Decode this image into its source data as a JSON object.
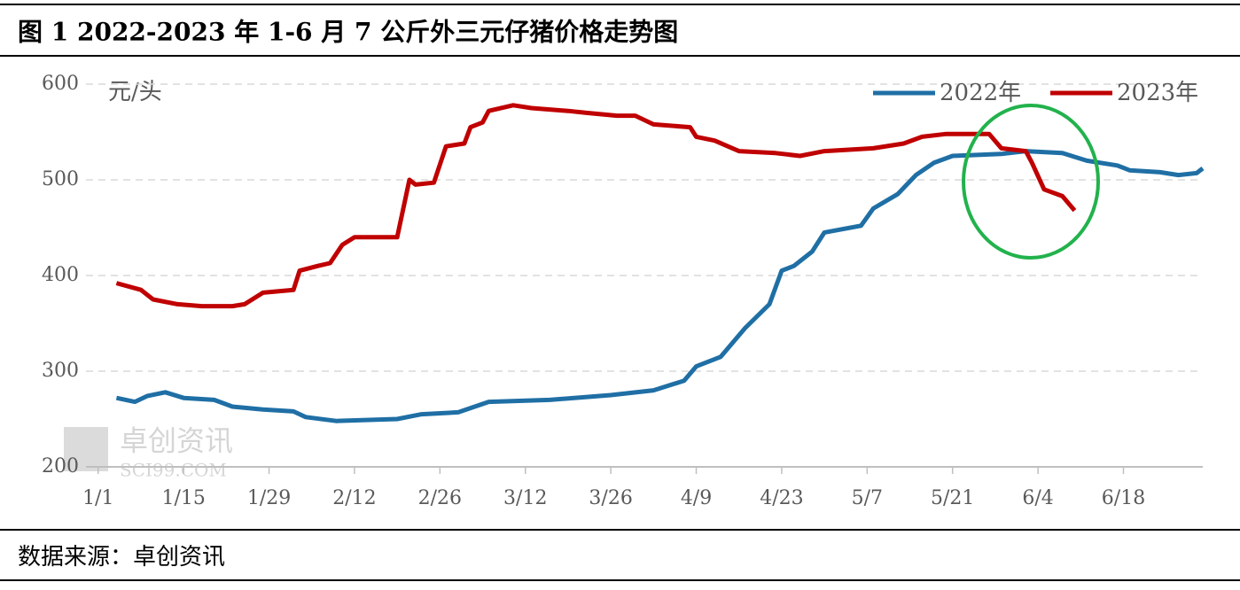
{
  "chart_data": {
    "type": "line",
    "title": "图 1 2022-2023 年 1-6 月 7 公斤外三元仔猪价格走势图",
    "y_label": "元/头",
    "source": "数据来源：卓创资讯",
    "watermark": [
      "卓创资讯",
      "SCI99.COM"
    ],
    "xlim": [
      -2,
      181
    ],
    "xticks": [
      {
        "value": 0,
        "label": "1/1"
      },
      {
        "value": 14,
        "label": "1/15"
      },
      {
        "value": 28,
        "label": "1/29"
      },
      {
        "value": 42,
        "label": "2/12"
      },
      {
        "value": 56,
        "label": "2/26"
      },
      {
        "value": 70,
        "label": "3/12"
      },
      {
        "value": 84,
        "label": "3/26"
      },
      {
        "value": 98,
        "label": "4/9"
      },
      {
        "value": 112,
        "label": "4/23"
      },
      {
        "value": 126,
        "label": "5/7"
      },
      {
        "value": 140,
        "label": "5/21"
      },
      {
        "value": 154,
        "label": "6/4"
      },
      {
        "value": 168,
        "label": "6/18"
      }
    ],
    "ylim": [
      200,
      600
    ],
    "yticks": [
      200,
      300,
      400,
      500,
      600
    ],
    "grid": true,
    "legend": "top-right",
    "series": [
      {
        "name": "2022年",
        "color": "#1f6fa5",
        "x": [
          3,
          6,
          8,
          11,
          14,
          19,
          22,
          27,
          32,
          34,
          39,
          49,
          53,
          59,
          64,
          74,
          84,
          91,
          96,
          98,
          102,
          104,
          106,
          110,
          112,
          114,
          117,
          119,
          125,
          127,
          131,
          134,
          137,
          140,
          148,
          152,
          158,
          162,
          167,
          169,
          174,
          177,
          180,
          181
        ],
        "values": [
          272,
          268,
          274,
          278,
          272,
          270,
          263,
          260,
          258,
          252,
          248,
          250,
          255,
          257,
          268,
          270,
          275,
          280,
          290,
          305,
          315,
          330,
          345,
          370,
          405,
          410,
          425,
          445,
          452,
          470,
          485,
          505,
          518,
          525,
          527,
          530,
          528,
          520,
          515,
          510,
          508,
          505,
          507,
          512
        ]
      },
      {
        "name": "2023年",
        "color": "#c00000",
        "x": [
          3,
          7,
          9,
          13,
          17,
          22,
          24,
          27,
          32,
          33,
          36,
          38,
          40,
          42,
          49,
          51,
          52,
          55,
          57,
          60,
          61,
          63,
          64,
          68,
          71,
          77,
          80,
          85,
          88,
          91,
          97,
          98,
          101,
          105,
          111,
          115,
          119,
          127,
          132,
          135,
          139,
          146,
          148,
          152,
          153,
          155,
          158,
          160
        ],
        "values": [
          392,
          385,
          375,
          370,
          368,
          368,
          370,
          382,
          385,
          405,
          410,
          413,
          432,
          440,
          440,
          500,
          495,
          497,
          535,
          538,
          555,
          560,
          572,
          578,
          575,
          572,
          570,
          567,
          567,
          558,
          555,
          545,
          541,
          530,
          528,
          525,
          530,
          533,
          538,
          545,
          548,
          548,
          533,
          530,
          518,
          490,
          483,
          468
        ]
      }
    ]
  }
}
